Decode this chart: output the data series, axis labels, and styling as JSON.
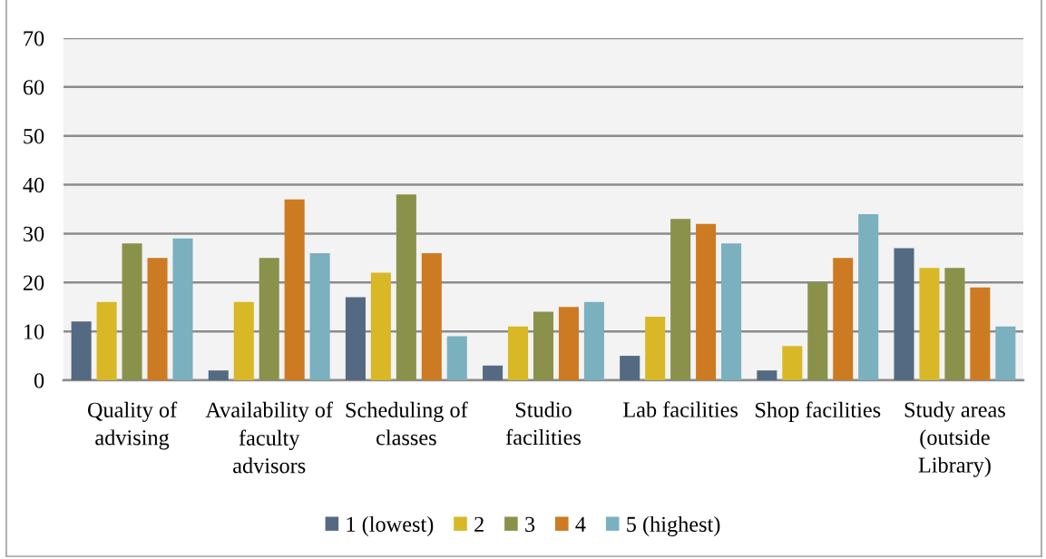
{
  "chart_data": {
    "type": "bar",
    "categories": [
      "Quality of\nadvising",
      "Availability of\nfaculty\nadvisors",
      "Scheduling of\nclasses",
      "Studio\nfacilities",
      "Lab facilities",
      "Shop facilities",
      "Study areas\n(outside\nLibrary)"
    ],
    "series": [
      {
        "name": "1 (lowest)",
        "color": "#546a82",
        "values": [
          12,
          2,
          17,
          3,
          5,
          2,
          27
        ]
      },
      {
        "name": "2",
        "color": "#d8b826",
        "values": [
          16,
          16,
          22,
          11,
          13,
          7,
          23
        ]
      },
      {
        "name": "3",
        "color": "#8a914a",
        "values": [
          28,
          25,
          38,
          14,
          33,
          20,
          23
        ]
      },
      {
        "name": "4",
        "color": "#cd7b22",
        "values": [
          25,
          37,
          26,
          15,
          32,
          25,
          19
        ]
      },
      {
        "name": "5 (highest)",
        "color": "#7bb0bf",
        "values": [
          29,
          26,
          9,
          16,
          28,
          34,
          11
        ]
      }
    ],
    "ylim": [
      0,
      70
    ],
    "yticks": [
      0,
      10,
      20,
      30,
      40,
      50,
      60,
      70
    ],
    "grid": "y",
    "legend": "bottom"
  }
}
